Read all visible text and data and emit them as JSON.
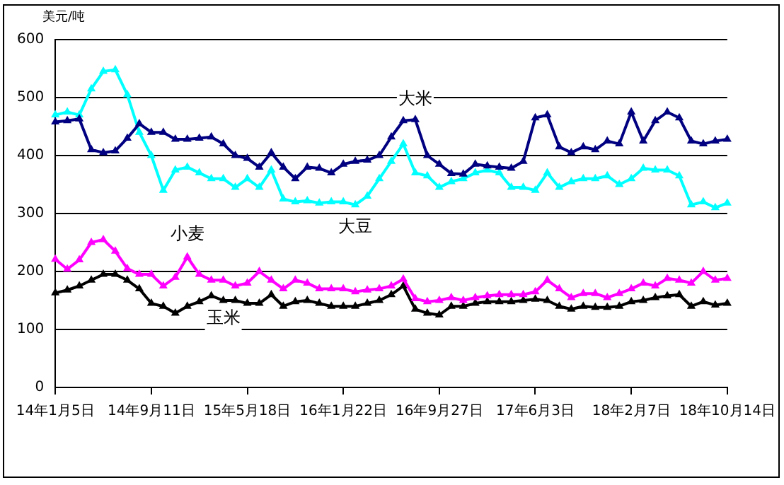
{
  "chart_data": {
    "type": "line",
    "ylabel": "美元/吨",
    "marker": "triangle",
    "grid": "y",
    "legend": false,
    "categories": [
      "14年1月5日",
      null,
      null,
      null,
      null,
      null,
      null,
      null,
      "14年9月11日",
      null,
      null,
      null,
      null,
      null,
      null,
      null,
      "15年5月18日",
      null,
      null,
      null,
      null,
      null,
      null,
      null,
      "16年1月22日",
      null,
      null,
      null,
      null,
      null,
      null,
      null,
      "16年9月27日",
      null,
      null,
      null,
      null,
      null,
      null,
      null,
      "17年6月3日",
      null,
      null,
      null,
      null,
      null,
      null,
      null,
      "18年2月7日",
      null,
      null,
      null,
      null,
      null,
      null,
      null,
      "18年10月14日"
    ],
    "ylim": [
      0,
      600
    ],
    "yticks": [
      0,
      100,
      200,
      300,
      400,
      500,
      600
    ],
    "series": [
      {
        "name": "大米",
        "color": "#000080",
        "values": [
          458,
          460,
          463,
          410,
          405,
          408,
          430,
          455,
          440,
          440,
          428,
          428,
          430,
          432,
          420,
          400,
          395,
          380,
          405,
          380,
          360,
          380,
          378,
          370,
          385,
          390,
          392,
          400,
          432,
          460,
          462,
          400,
          385,
          369,
          368,
          385,
          382,
          380,
          378,
          390,
          465,
          470,
          415,
          405,
          415,
          410,
          425,
          420,
          475,
          425,
          460,
          475,
          465,
          425,
          420,
          425,
          428
        ]
      },
      {
        "name": "大豆",
        "color": "#00ffff",
        "values": [
          470,
          475,
          470,
          515,
          545,
          548,
          505,
          440,
          400,
          340,
          375,
          380,
          370,
          360,
          360,
          345,
          360,
          345,
          375,
          325,
          320,
          322,
          318,
          320,
          320,
          315,
          330,
          360,
          390,
          420,
          370,
          365,
          345,
          355,
          360,
          370,
          375,
          370,
          345,
          345,
          340,
          370,
          345,
          355,
          360,
          360,
          365,
          350,
          360,
          378,
          375,
          375,
          365,
          315,
          320,
          310,
          318
        ]
      },
      {
        "name": "小麦",
        "color": "#ff00ff",
        "values": [
          221,
          204,
          220,
          250,
          255,
          235,
          205,
          195,
          195,
          175,
          190,
          225,
          195,
          185,
          185,
          175,
          180,
          200,
          185,
          170,
          185,
          180,
          170,
          170,
          170,
          165,
          168,
          170,
          175,
          187,
          153,
          148,
          150,
          155,
          150,
          155,
          158,
          160,
          160,
          160,
          165,
          185,
          170,
          155,
          162,
          162,
          155,
          162,
          170,
          180,
          175,
          188,
          185,
          180,
          200,
          185,
          188
        ]
      },
      {
        "name": "玉米",
        "color": "#000000",
        "values": [
          163,
          168,
          175,
          185,
          195,
          195,
          185,
          170,
          145,
          140,
          128,
          140,
          148,
          158,
          150,
          150,
          145,
          145,
          160,
          140,
          148,
          150,
          145,
          140,
          140,
          140,
          145,
          150,
          160,
          175,
          135,
          128,
          125,
          140,
          140,
          145,
          148,
          148,
          148,
          150,
          152,
          150,
          140,
          135,
          140,
          138,
          138,
          140,
          148,
          150,
          155,
          158,
          160,
          140,
          148,
          142,
          145
        ]
      }
    ]
  }
}
